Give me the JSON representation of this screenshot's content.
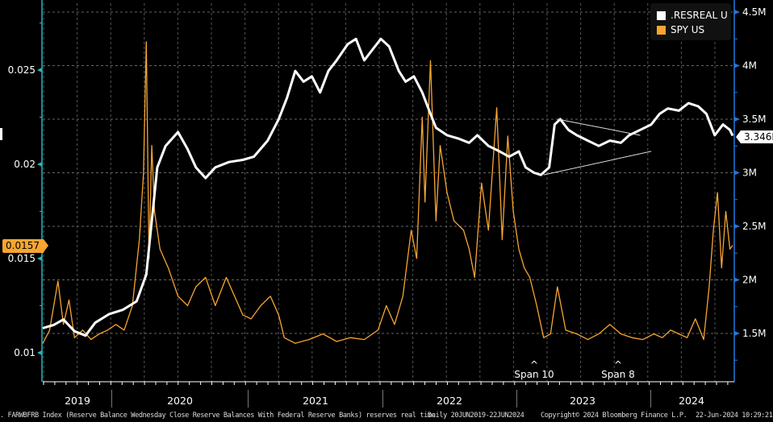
{
  "chart_data": {
    "type": "line",
    "title": "",
    "xlabel": "",
    "ylabel_left": "",
    "ylabel_right": "",
    "x_range": [
      "20JUN2019",
      "22JUN2024"
    ],
    "x_categories": [
      "2019",
      "2020",
      "2021",
      "2022",
      "2023",
      "2024"
    ],
    "left_axis": {
      "ticks": [
        "0.01",
        "0.015",
        "0.02",
        "0.025"
      ],
      "range": [
        0.0085,
        0.0279
      ],
      "color": "#2bb3c0"
    },
    "right_axis": {
      "ticks": [
        "1.5M",
        "2M",
        "2.5M",
        "3M",
        "3.5M",
        "4M",
        "4.5M"
      ],
      "range": [
        1.25,
        4.55
      ],
      "color": "#1f7ae0"
    },
    "legend_position": "top-right",
    "grid": true,
    "series": [
      {
        "name": ".RESREAL U",
        "axis": "right",
        "color": "#ffffff",
        "unit": "M",
        "last_value": "3.346M",
        "points": [
          [
            2019.47,
            1.55
          ],
          [
            2019.55,
            1.58
          ],
          [
            2019.62,
            1.63
          ],
          [
            2019.7,
            1.52
          ],
          [
            2019.78,
            1.48
          ],
          [
            2019.85,
            1.6
          ],
          [
            2019.95,
            1.68
          ],
          [
            2020.05,
            1.72
          ],
          [
            2020.15,
            1.8
          ],
          [
            2020.22,
            2.05
          ],
          [
            2020.26,
            2.55
          ],
          [
            2020.3,
            3.05
          ],
          [
            2020.36,
            3.25
          ],
          [
            2020.45,
            3.38
          ],
          [
            2020.52,
            3.22
          ],
          [
            2020.58,
            3.05
          ],
          [
            2020.65,
            2.95
          ],
          [
            2020.72,
            3.05
          ],
          [
            2020.82,
            3.1
          ],
          [
            2020.92,
            3.12
          ],
          [
            2021.0,
            3.15
          ],
          [
            2021.1,
            3.3
          ],
          [
            2021.18,
            3.5
          ],
          [
            2021.24,
            3.7
          ],
          [
            2021.3,
            3.95
          ],
          [
            2021.36,
            3.85
          ],
          [
            2021.42,
            3.9
          ],
          [
            2021.48,
            3.75
          ],
          [
            2021.54,
            3.95
          ],
          [
            2021.6,
            4.05
          ],
          [
            2021.68,
            4.2
          ],
          [
            2021.74,
            4.25
          ],
          [
            2021.8,
            4.05
          ],
          [
            2021.86,
            4.15
          ],
          [
            2021.92,
            4.25
          ],
          [
            2021.98,
            4.18
          ],
          [
            2022.05,
            3.95
          ],
          [
            2022.1,
            3.85
          ],
          [
            2022.16,
            3.9
          ],
          [
            2022.22,
            3.75
          ],
          [
            2022.28,
            3.55
          ],
          [
            2022.32,
            3.42
          ],
          [
            2022.4,
            3.35
          ],
          [
            2022.48,
            3.32
          ],
          [
            2022.56,
            3.28
          ],
          [
            2022.62,
            3.35
          ],
          [
            2022.7,
            3.25
          ],
          [
            2022.78,
            3.2
          ],
          [
            2022.85,
            3.15
          ],
          [
            2022.92,
            3.2
          ],
          [
            2022.97,
            3.05
          ],
          [
            2023.03,
            3.0
          ],
          [
            2023.08,
            2.98
          ],
          [
            2023.14,
            3.05
          ],
          [
            2023.18,
            3.45
          ],
          [
            2023.22,
            3.5
          ],
          [
            2023.28,
            3.4
          ],
          [
            2023.34,
            3.35
          ],
          [
            2023.42,
            3.3
          ],
          [
            2023.5,
            3.25
          ],
          [
            2023.58,
            3.3
          ],
          [
            2023.66,
            3.28
          ],
          [
            2023.72,
            3.35
          ],
          [
            2023.8,
            3.4
          ],
          [
            2023.88,
            3.45
          ],
          [
            2023.94,
            3.55
          ],
          [
            2024.0,
            3.6
          ],
          [
            2024.08,
            3.58
          ],
          [
            2024.15,
            3.65
          ],
          [
            2024.22,
            3.62
          ],
          [
            2024.28,
            3.55
          ],
          [
            2024.34,
            3.35
          ],
          [
            2024.4,
            3.45
          ],
          [
            2024.45,
            3.4
          ],
          [
            2024.47,
            3.346
          ]
        ]
      },
      {
        "name": "SPY US",
        "axis": "left",
        "color": "#f7a531",
        "last_value": "0.0157",
        "points": [
          [
            2019.47,
            0.0105
          ],
          [
            2019.52,
            0.0112
          ],
          [
            2019.58,
            0.0138
          ],
          [
            2019.62,
            0.0115
          ],
          [
            2019.66,
            0.0128
          ],
          [
            2019.7,
            0.0108
          ],
          [
            2019.76,
            0.0112
          ],
          [
            2019.82,
            0.0107
          ],
          [
            2019.88,
            0.011
          ],
          [
            2019.94,
            0.0112
          ],
          [
            2020.0,
            0.0115
          ],
          [
            2020.06,
            0.0112
          ],
          [
            2020.12,
            0.0125
          ],
          [
            2020.17,
            0.016
          ],
          [
            2020.2,
            0.0195
          ],
          [
            2020.22,
            0.0265
          ],
          [
            2020.24,
            0.015
          ],
          [
            2020.26,
            0.021
          ],
          [
            2020.28,
            0.0175
          ],
          [
            2020.32,
            0.0155
          ],
          [
            2020.38,
            0.0145
          ],
          [
            2020.45,
            0.013
          ],
          [
            2020.52,
            0.0125
          ],
          [
            2020.58,
            0.0135
          ],
          [
            2020.65,
            0.014
          ],
          [
            2020.72,
            0.0125
          ],
          [
            2020.8,
            0.014
          ],
          [
            2020.86,
            0.013
          ],
          [
            2020.92,
            0.012
          ],
          [
            2020.98,
            0.0118
          ],
          [
            2021.05,
            0.0125
          ],
          [
            2021.12,
            0.013
          ],
          [
            2021.18,
            0.012
          ],
          [
            2021.22,
            0.0108
          ],
          [
            2021.3,
            0.0105
          ],
          [
            2021.4,
            0.0107
          ],
          [
            2021.5,
            0.011
          ],
          [
            2021.6,
            0.0106
          ],
          [
            2021.7,
            0.0108
          ],
          [
            2021.8,
            0.0107
          ],
          [
            2021.9,
            0.0112
          ],
          [
            2021.96,
            0.0125
          ],
          [
            2022.02,
            0.0115
          ],
          [
            2022.08,
            0.013
          ],
          [
            2022.14,
            0.0165
          ],
          [
            2022.18,
            0.015
          ],
          [
            2022.22,
            0.0225
          ],
          [
            2022.24,
            0.018
          ],
          [
            2022.28,
            0.0255
          ],
          [
            2022.32,
            0.017
          ],
          [
            2022.35,
            0.021
          ],
          [
            2022.4,
            0.0185
          ],
          [
            2022.45,
            0.017
          ],
          [
            2022.52,
            0.0165
          ],
          [
            2022.56,
            0.0155
          ],
          [
            2022.6,
            0.014
          ],
          [
            2022.65,
            0.019
          ],
          [
            2022.7,
            0.0165
          ],
          [
            2022.76,
            0.023
          ],
          [
            2022.8,
            0.016
          ],
          [
            2022.84,
            0.0215
          ],
          [
            2022.88,
            0.0175
          ],
          [
            2022.92,
            0.0155
          ],
          [
            2022.96,
            0.0145
          ],
          [
            2023.0,
            0.014
          ],
          [
            2023.05,
            0.0125
          ],
          [
            2023.1,
            0.0108
          ],
          [
            2023.15,
            0.011
          ],
          [
            2023.2,
            0.0135
          ],
          [
            2023.26,
            0.0112
          ],
          [
            2023.34,
            0.011
          ],
          [
            2023.42,
            0.0107
          ],
          [
            2023.5,
            0.011
          ],
          [
            2023.58,
            0.0115
          ],
          [
            2023.66,
            0.011
          ],
          [
            2023.74,
            0.0108
          ],
          [
            2023.82,
            0.0107
          ],
          [
            2023.9,
            0.011
          ],
          [
            2023.96,
            0.0108
          ],
          [
            2024.02,
            0.0112
          ],
          [
            2024.08,
            0.011
          ],
          [
            2024.14,
            0.0108
          ],
          [
            2024.2,
            0.0118
          ],
          [
            2024.26,
            0.0107
          ],
          [
            2024.3,
            0.0135
          ],
          [
            2024.33,
            0.0165
          ],
          [
            2024.36,
            0.0185
          ],
          [
            2024.39,
            0.0145
          ],
          [
            2024.42,
            0.0175
          ],
          [
            2024.45,
            0.0155
          ],
          [
            2024.47,
            0.0157
          ]
        ]
      }
    ],
    "trendlines": [
      {
        "from": [
          2023.2,
          3.5
        ],
        "to": [
          2023.8,
          3.35
        ]
      },
      {
        "from": [
          2023.1,
          2.98
        ],
        "to": [
          2023.88,
          3.2
        ]
      }
    ],
    "annotations": [
      "Span 10",
      "Span 8"
    ]
  },
  "legend": {
    "items": [
      {
        "label": ".RESREAL U",
        "color": "#ffffff"
      },
      {
        "label": "SPY US",
        "color": "#f7a531"
      }
    ]
  },
  "axis_badges": {
    "left_value": "0.0157",
    "right_value": "3.346M"
  },
  "x_axis": {
    "years": [
      "2019",
      "2020",
      "2021",
      "2022",
      "2023",
      "2024"
    ]
  },
  "spans": [
    {
      "caret": "^",
      "label": "Span 10"
    },
    {
      "caret": "^",
      "label": "Span 8"
    }
  ],
  "footer": {
    "description": ". FARWBFRB Index (Reserve Balance Wednesday Close Reserve Balances With Federal Reserve Banks) reserves real time",
    "range": "Daily 20JUN2019-22JUN2024",
    "copyright": "Copyright© 2024 Bloomberg Finance L.P.",
    "timestamp": "22-Jun-2024 10:29:21"
  }
}
